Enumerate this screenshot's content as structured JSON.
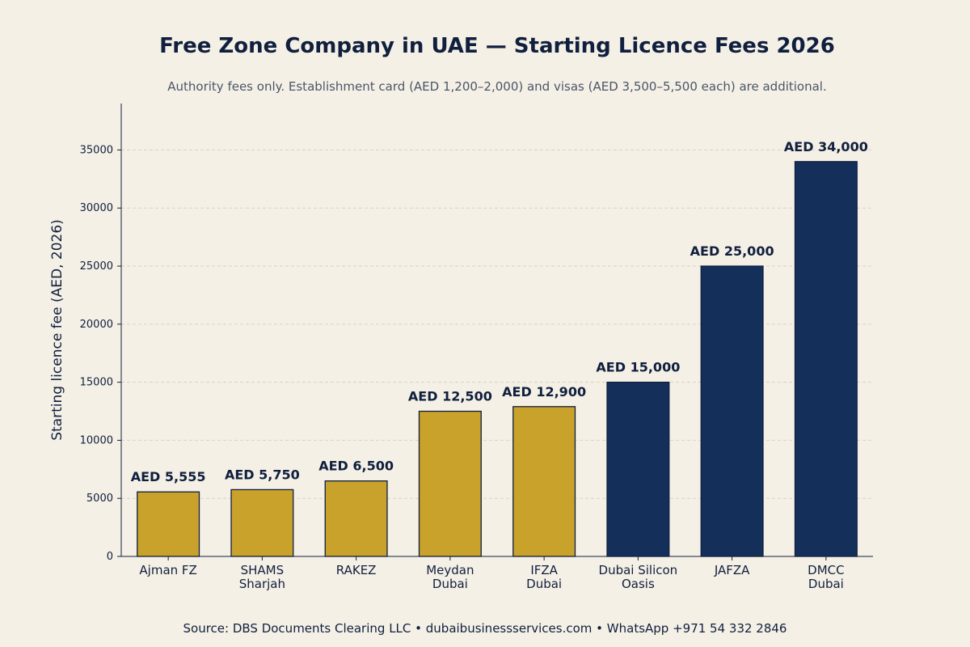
{
  "chart_data": {
    "type": "bar",
    "title": "Free Zone Company in UAE — Starting Licence Fees 2026",
    "subtitle": "Authority fees only. Establishment card (AED 1,200–2,000) and visas (AED 3,500–5,500 each) are additional.",
    "xlabel": "",
    "ylabel": "Starting licence fee (AED, 2026)",
    "ylim": [
      0,
      39000
    ],
    "yticks": [
      0,
      5000,
      10000,
      15000,
      20000,
      25000,
      30000,
      35000
    ],
    "grid": true,
    "categories": [
      [
        "Ajman FZ"
      ],
      [
        "SHAMS",
        "Sharjah"
      ],
      [
        "RAKEZ"
      ],
      [
        "Meydan",
        "Dubai"
      ],
      [
        "IFZA",
        "Dubai"
      ],
      [
        "Dubai Silicon",
        "Oasis"
      ],
      [
        "JAFZA"
      ],
      [
        "DMCC",
        "Dubai"
      ]
    ],
    "values": [
      5555,
      5750,
      6500,
      12500,
      12900,
      15000,
      25000,
      34000
    ],
    "data_labels": [
      "AED 5,555",
      "AED 5,750",
      "AED 6,500",
      "AED 12,500",
      "AED 12,900",
      "AED 15,000",
      "AED 25,000",
      "AED 34,000"
    ],
    "bar_colors": [
      "#c9a22c",
      "#c9a22c",
      "#c9a22c",
      "#c9a22c",
      "#c9a22c",
      "#14305a",
      "#14305a",
      "#14305a"
    ],
    "source": "Source: DBS Documents Clearing LLC  •  dubaibusinessservices.com  •  WhatsApp +971 54 332 2846"
  },
  "colors": {
    "background": "#f5f0e6",
    "gold": "#c9a22c",
    "navy": "#14305a",
    "text": "#0f1f3d",
    "grid": "#d9d2c2"
  }
}
